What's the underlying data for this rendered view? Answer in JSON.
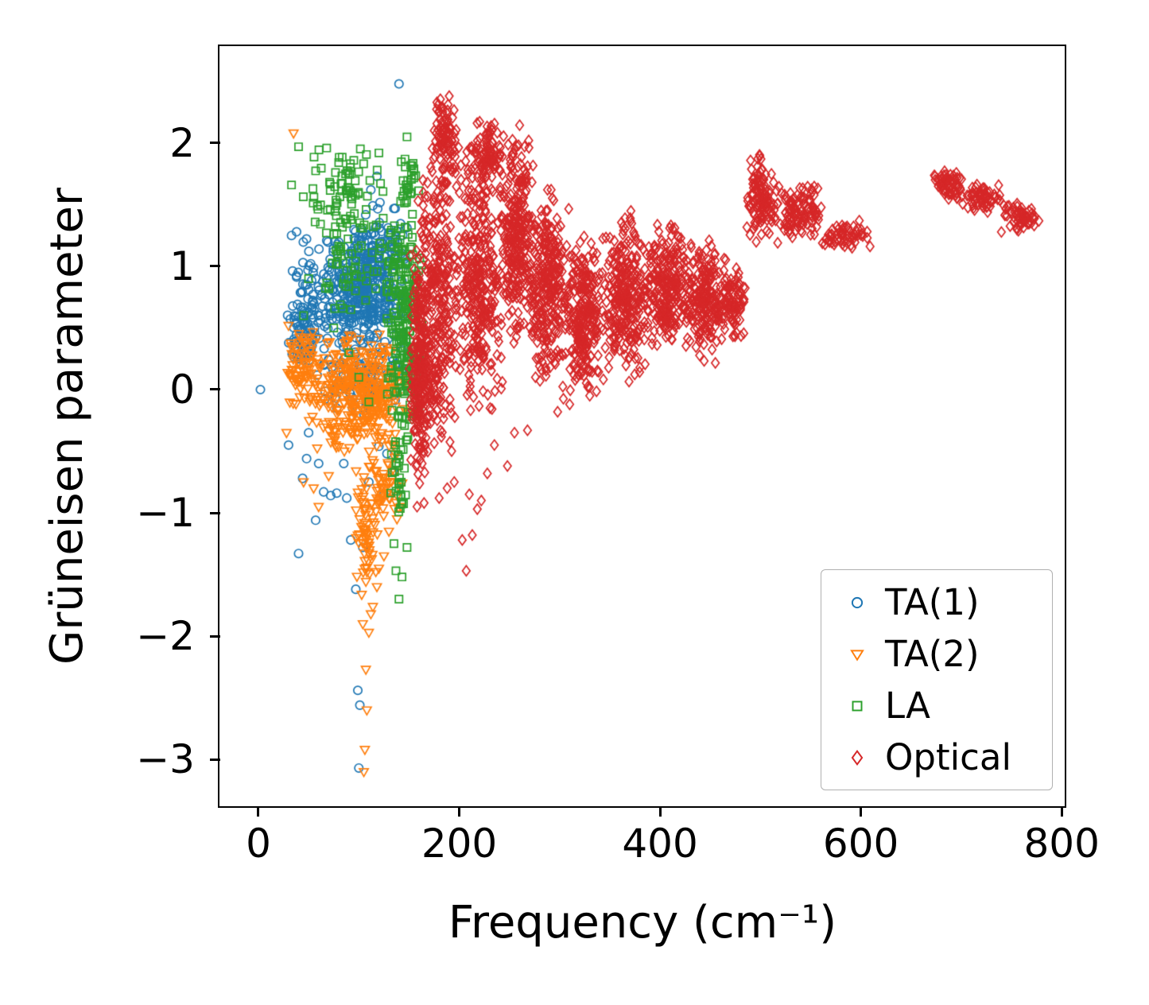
{
  "chart_data": {
    "type": "scatter",
    "title": "",
    "xlabel": "Frequency (cm⁻¹)",
    "ylabel": "Grüneisen parameter",
    "xlim": [
      -38,
      803
    ],
    "ylim": [
      -3.38,
      2.78
    ],
    "xticks": [
      0,
      200,
      400,
      600,
      800
    ],
    "yticks": [
      -3,
      -2,
      -1,
      0,
      1,
      2
    ],
    "grid": false,
    "legend_position": "lower right",
    "series": [
      {
        "name": "TA(1)",
        "marker": "circle",
        "color": "#1f77b4",
        "clusters": [
          [
            60,
            150,
            0.35,
            1.3,
            380
          ],
          [
            30,
            75,
            0.1,
            1.3,
            90
          ],
          [
            55,
            150,
            -0.25,
            0.45,
            110
          ],
          [
            90,
            150,
            0.9,
            1.55,
            60
          ],
          [
            25,
            55,
            0.15,
            0.75,
            40
          ]
        ],
        "points": [
          [
            2,
            0
          ],
          [
            140,
            2.48
          ],
          [
            118,
            1.73
          ],
          [
            112,
            1.62
          ],
          [
            38,
            1.28
          ],
          [
            33,
            1.25
          ],
          [
            100,
            -3.07
          ],
          [
            101,
            -2.56
          ],
          [
            99,
            -2.44
          ],
          [
            97,
            -1.62
          ],
          [
            104,
            -1.28
          ],
          [
            92,
            -1.22
          ],
          [
            88,
            -0.88
          ],
          [
            72,
            -0.86
          ],
          [
            78,
            -0.84
          ],
          [
            65,
            -0.83
          ],
          [
            48,
            -0.56
          ],
          [
            44,
            -0.72
          ],
          [
            40,
            -1.33
          ],
          [
            57,
            -1.06
          ],
          [
            128,
            -0.52
          ],
          [
            134,
            -0.66
          ],
          [
            120,
            -0.46
          ],
          [
            50,
            -0.35
          ],
          [
            30,
            -0.45
          ],
          [
            60,
            -0.6
          ],
          [
            85,
            -0.6
          ],
          [
            110,
            -0.75
          ],
          [
            125,
            -0.85
          ]
        ]
      },
      {
        "name": "TA(2)",
        "marker": "triangle-down",
        "color": "#ff7f0e",
        "clusters": [
          [
            45,
            160,
            -0.55,
            0.5,
            380
          ],
          [
            25,
            60,
            -0.15,
            0.5,
            70
          ],
          [
            95,
            120,
            -1.7,
            -0.5,
            70
          ],
          [
            110,
            145,
            -1.2,
            -0.35,
            50
          ]
        ],
        "points": [
          [
            35,
            2.08
          ],
          [
            30,
            0.52
          ],
          [
            105,
            -3.1
          ],
          [
            106,
            -2.92
          ],
          [
            108,
            -2.6
          ],
          [
            107,
            -2.27
          ],
          [
            110,
            -1.97
          ],
          [
            104,
            -1.9
          ],
          [
            112,
            -1.82
          ],
          [
            114,
            -1.76
          ],
          [
            118,
            -1.6
          ],
          [
            120,
            -1.45
          ],
          [
            125,
            -1.35
          ],
          [
            130,
            -1.15
          ],
          [
            138,
            -1.05
          ],
          [
            142,
            -0.95
          ],
          [
            45,
            -0.75
          ],
          [
            55,
            -0.8
          ],
          [
            60,
            -0.95
          ],
          [
            70,
            -0.7
          ],
          [
            28,
            -0.35
          ]
        ]
      },
      {
        "name": "LA",
        "marker": "square",
        "color": "#2ca02c",
        "clusters": [
          [
            125,
            165,
            -0.45,
            1.55,
            240
          ],
          [
            40,
            130,
            1.25,
            2.05,
            70
          ],
          [
            60,
            135,
            0.55,
            1.5,
            60
          ],
          [
            130,
            152,
            -1.1,
            -0.3,
            30
          ],
          [
            140,
            160,
            1.4,
            1.95,
            30
          ]
        ],
        "points": [
          [
            40,
            1.97
          ],
          [
            68,
            1.96
          ],
          [
            95,
            1.86
          ],
          [
            120,
            1.92
          ],
          [
            146,
            1.87
          ],
          [
            148,
            2.05
          ],
          [
            33,
            1.66
          ],
          [
            140,
            -1.7
          ],
          [
            137,
            -1.47
          ],
          [
            143,
            -1.52
          ],
          [
            135,
            -1.25
          ],
          [
            148,
            -1.28
          ],
          [
            90,
            0.3
          ],
          [
            100,
            0.1
          ],
          [
            110,
            -0.1
          ],
          [
            75,
            0.5
          ],
          [
            50,
            0.9
          ],
          [
            45,
            0.6
          ]
        ]
      },
      {
        "name": "Optical",
        "marker": "diamond",
        "color": "#d62728",
        "clusters": [
          [
            150,
            172,
            -0.9,
            1.2,
            220
          ],
          [
            155,
            200,
            -0.6,
            2.1,
            320
          ],
          [
            172,
            200,
            1.6,
            2.45,
            90
          ],
          [
            195,
            245,
            -0.25,
            2.1,
            340
          ],
          [
            215,
            245,
            1.7,
            2.2,
            70
          ],
          [
            240,
            275,
            0.35,
            2.2,
            270
          ],
          [
            265,
            310,
            0,
            1.65,
            280
          ],
          [
            300,
            345,
            -0.1,
            1.3,
            260
          ],
          [
            340,
            390,
            0.05,
            1.5,
            260
          ],
          [
            380,
            430,
            0.3,
            1.4,
            230
          ],
          [
            420,
            465,
            0.2,
            1.25,
            200
          ],
          [
            455,
            490,
            0.35,
            1.1,
            90
          ],
          [
            486,
            518,
            1.15,
            1.95,
            110
          ],
          [
            512,
            565,
            1.2,
            1.72,
            110
          ],
          [
            560,
            612,
            1.12,
            1.38,
            60
          ],
          [
            672,
            706,
            1.52,
            1.8,
            60
          ],
          [
            700,
            742,
            1.42,
            1.68,
            60
          ],
          [
            736,
            782,
            1.26,
            1.52,
            60
          ]
        ],
        "points": [
          [
            207,
            -1.47
          ],
          [
            203,
            -1.22
          ],
          [
            213,
            -1.18
          ],
          [
            218,
            -0.97
          ],
          [
            222,
            -0.9
          ],
          [
            228,
            -0.68
          ],
          [
            248,
            -0.62
          ],
          [
            268,
            -0.33
          ],
          [
            298,
            -0.18
          ],
          [
            210,
            -0.85
          ],
          [
            195,
            -0.75
          ],
          [
            188,
            -0.8
          ],
          [
            180,
            -0.88
          ],
          [
            165,
            -0.92
          ],
          [
            158,
            -0.95
          ],
          [
            235,
            -0.45
          ],
          [
            255,
            -0.35
          ],
          [
            310,
            -0.12
          ],
          [
            330,
            -0.05
          ]
        ]
      }
    ]
  }
}
